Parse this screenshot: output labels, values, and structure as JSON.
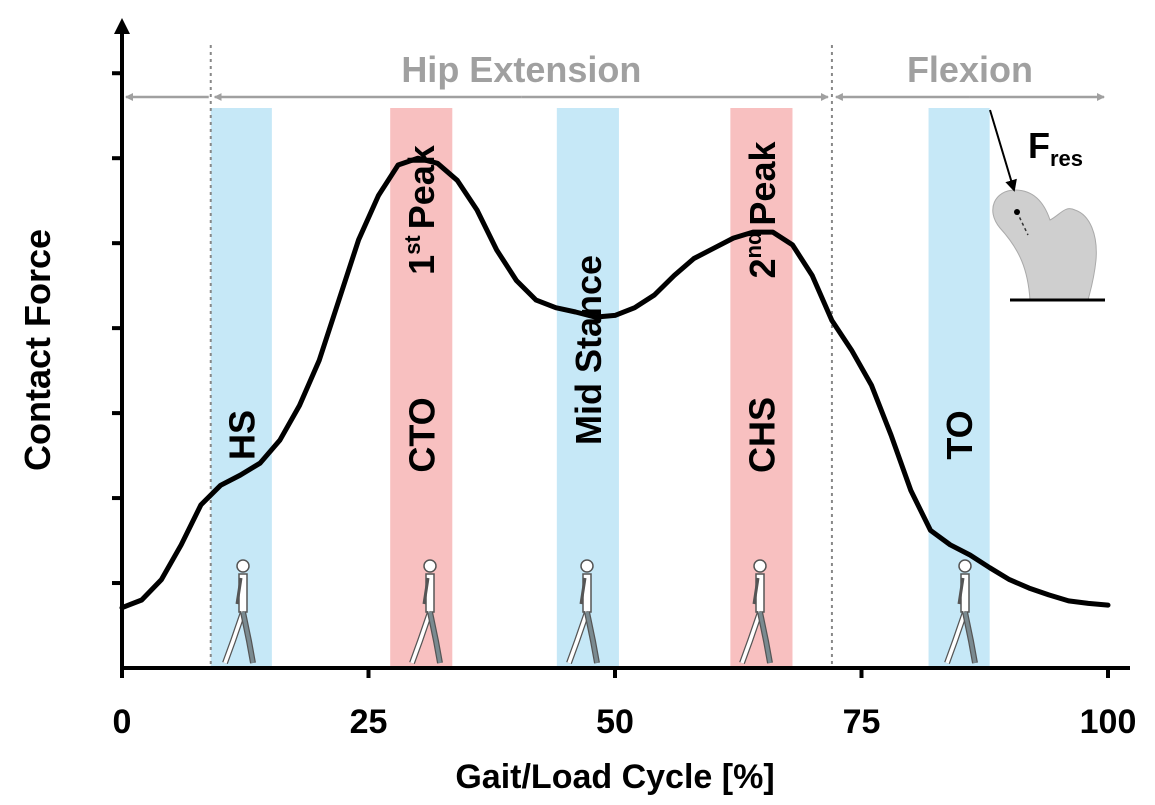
{
  "chart_data": {
    "type": "line",
    "x_label": "Gait/Load Cycle [%]",
    "y_label": "Contact Force",
    "x": [
      0,
      2,
      4,
      6,
      8,
      10,
      12,
      14,
      16,
      18,
      20,
      22,
      24,
      26,
      28,
      30,
      32,
      34,
      36,
      38,
      40,
      42,
      44,
      46,
      48,
      50,
      52,
      54,
      56,
      58,
      60,
      62,
      64,
      66,
      68,
      70,
      72,
      74,
      76,
      78,
      80,
      82,
      84,
      86,
      88,
      90,
      92,
      94,
      96,
      98,
      100
    ],
    "series": [
      {
        "color": "#000000",
        "values": [
          0.71,
          0.8,
          1.04,
          1.45,
          1.92,
          2.15,
          2.27,
          2.41,
          2.68,
          3.09,
          3.62,
          4.33,
          5.04,
          5.56,
          5.92,
          6.0,
          5.94,
          5.74,
          5.39,
          4.92,
          4.56,
          4.33,
          4.24,
          4.19,
          4.13,
          4.15,
          4.24,
          4.39,
          4.62,
          4.82,
          4.94,
          5.06,
          5.13,
          5.13,
          4.98,
          4.62,
          4.09,
          3.74,
          3.33,
          2.74,
          2.09,
          1.62,
          1.45,
          1.33,
          1.18,
          1.04,
          0.94,
          0.86,
          0.79,
          0.76,
          0.74
        ]
      }
    ],
    "xlim": [
      0,
      100
    ],
    "xticks": [
      0,
      25,
      50,
      75,
      100
    ],
    "ylim": [
      0,
      7.65
    ],
    "yticks": [
      1,
      2,
      3,
      4,
      5,
      6,
      7
    ],
    "phases": [
      {
        "label": "HS",
        "start": 9,
        "end": 15.2,
        "color": "#c6e8f7"
      },
      {
        "label": "CTO",
        "start": 27.2,
        "end": 33.5,
        "color": "#f8c0c0"
      },
      {
        "label": "Mid Stance",
        "start": 44.1,
        "end": 50.4,
        "color": "#c6e8f7"
      },
      {
        "label": "CHS",
        "start": 61.7,
        "end": 68,
        "color": "#f8c0c0"
      },
      {
        "label": "TO",
        "start": 81.8,
        "end": 88,
        "color": "#c6e8f7"
      }
    ],
    "peaks": [
      {
        "x": 30.3,
        "base": "1",
        "sup": "st",
        "tail": "Peak"
      },
      {
        "x": 64.9,
        "base": "2",
        "sup": "nd",
        "tail": "Peak"
      }
    ],
    "dividers": [
      9,
      72
    ],
    "regions": [
      {
        "label": "Hip Extension",
        "start": 9,
        "end": 72
      },
      {
        "label": "Flexion",
        "start": 72,
        "end": 100
      }
    ],
    "force_label": {
      "base": "F",
      "sub": "res"
    }
  }
}
